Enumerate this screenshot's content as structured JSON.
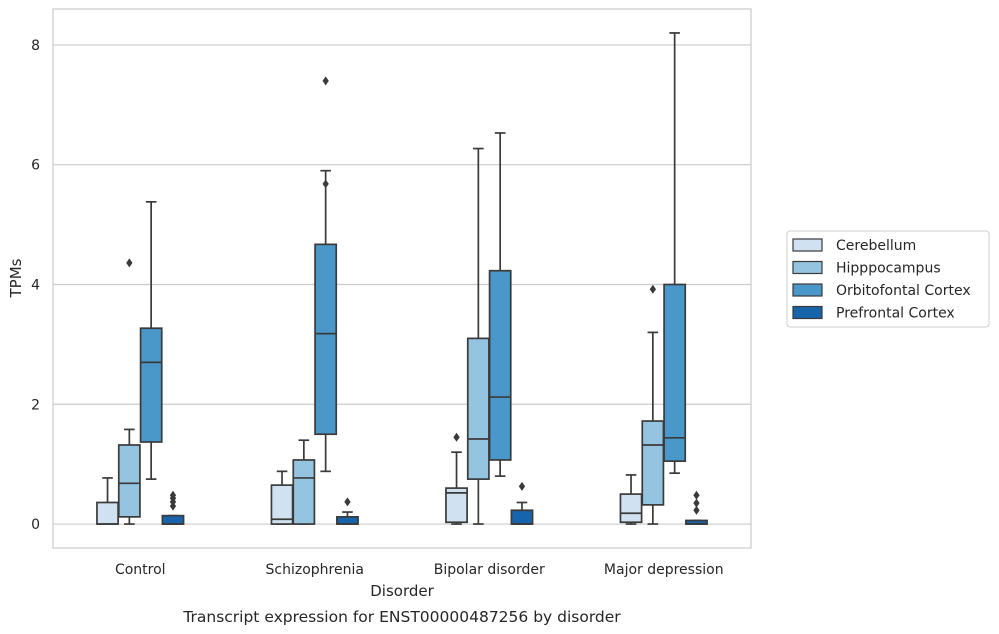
{
  "chart_data": {
    "type": "box",
    "caption": "Transcript expression for ENST00000487256 by disorder",
    "xlabel": "Disorder",
    "ylabel": "TPMs",
    "ylim": [
      -0.4,
      8.6
    ],
    "yticks": [
      0,
      2,
      4,
      6,
      8
    ],
    "categories": [
      "Control",
      "Schizophrenia",
      "Bipolar disorder",
      "Major depression"
    ],
    "grid": true,
    "legend_position": "right",
    "series": [
      {
        "name": "Cerebellum",
        "color": "#d0e1f2",
        "boxes": [
          {
            "whislo": 0.0,
            "q1": 0.0,
            "med": 0.0,
            "q3": 0.36,
            "whishi": 0.77,
            "fliers": []
          },
          {
            "whislo": 0.0,
            "q1": 0.0,
            "med": 0.08,
            "q3": 0.65,
            "whishi": 0.88,
            "fliers": []
          },
          {
            "whislo": 0.0,
            "q1": 0.03,
            "med": 0.52,
            "q3": 0.6,
            "whishi": 1.2,
            "fliers": [
              1.45
            ]
          },
          {
            "whislo": 0.0,
            "q1": 0.03,
            "med": 0.18,
            "q3": 0.5,
            "whishi": 0.82,
            "fliers": []
          }
        ]
      },
      {
        "name": "Hipppocampus",
        "color": "#94c4df",
        "boxes": [
          {
            "whislo": 0.0,
            "q1": 0.12,
            "med": 0.68,
            "q3": 1.32,
            "whishi": 1.58,
            "fliers": [
              4.36
            ]
          },
          {
            "whislo": 0.0,
            "q1": 0.0,
            "med": 0.77,
            "q3": 1.07,
            "whishi": 1.4,
            "fliers": []
          },
          {
            "whislo": 0.0,
            "q1": 0.75,
            "med": 1.42,
            "q3": 3.1,
            "whishi": 6.27,
            "fliers": []
          },
          {
            "whislo": 0.0,
            "q1": 0.32,
            "med": 1.32,
            "q3": 1.72,
            "whishi": 3.2,
            "fliers": [
              3.92
            ]
          }
        ]
      },
      {
        "name": "Orbitofontal Cortex",
        "color": "#4a98c9",
        "boxes": [
          {
            "whislo": 0.75,
            "q1": 1.37,
            "med": 2.7,
            "q3": 3.27,
            "whishi": 5.38,
            "fliers": []
          },
          {
            "whislo": 0.88,
            "q1": 1.5,
            "med": 3.18,
            "q3": 4.67,
            "whishi": 5.9,
            "fliers": [
              5.68,
              7.4
            ]
          },
          {
            "whislo": 0.8,
            "q1": 1.07,
            "med": 2.12,
            "q3": 4.23,
            "whishi": 6.53,
            "fliers": []
          },
          {
            "whislo": 0.85,
            "q1": 1.05,
            "med": 1.44,
            "q3": 4.0,
            "whishi": 8.2,
            "fliers": []
          }
        ]
      },
      {
        "name": "Prefrontal Cortex",
        "color": "#1764ab",
        "boxes": [
          {
            "whislo": 0.0,
            "q1": 0.0,
            "med": 0.0,
            "q3": 0.14,
            "whishi": 0.14,
            "fliers": [
              0.3,
              0.37,
              0.43,
              0.48
            ]
          },
          {
            "whislo": 0.0,
            "q1": 0.0,
            "med": 0.0,
            "q3": 0.12,
            "whishi": 0.2,
            "fliers": [
              0.37
            ]
          },
          {
            "whislo": 0.0,
            "q1": 0.0,
            "med": 0.0,
            "q3": 0.23,
            "whishi": 0.36,
            "fliers": [
              0.63
            ]
          },
          {
            "whislo": 0.0,
            "q1": 0.0,
            "med": 0.0,
            "q3": 0.06,
            "whishi": 0.06,
            "fliers": [
              0.23,
              0.35,
              0.48
            ]
          }
        ]
      }
    ]
  }
}
